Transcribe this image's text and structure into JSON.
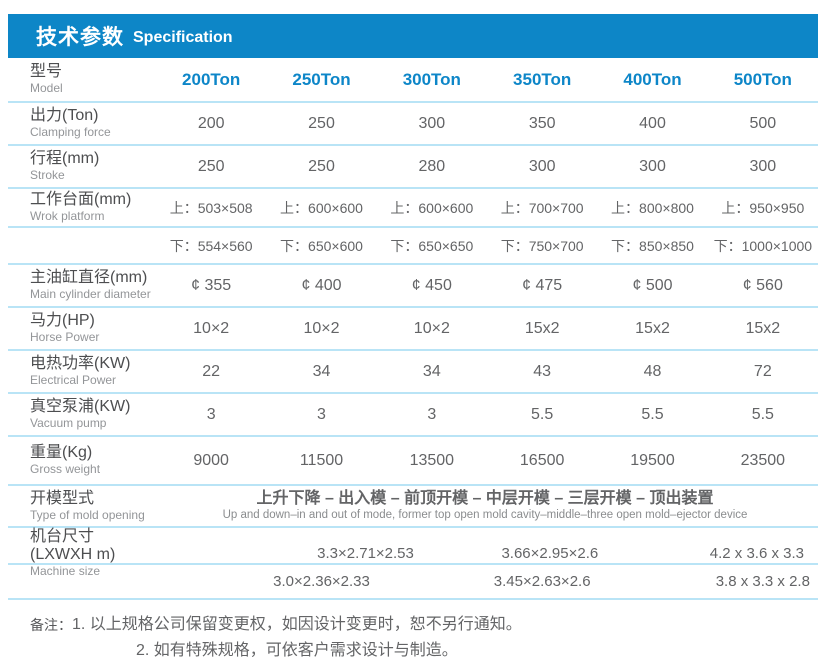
{
  "header": {
    "title_zh": "技术参数",
    "title_en": "Specification"
  },
  "colors": {
    "header_bg": "#0d86c7",
    "accent_text": "#0d86c8",
    "divider": "#b9e4f6",
    "text_primary": "#636466",
    "text_label": "#4d4e50",
    "text_sub": "#939598"
  },
  "model_row": {
    "label_zh": "型号",
    "label_en": "Model"
  },
  "columns": [
    "200Ton",
    "250Ton",
    "300Ton",
    "350Ton",
    "400Ton",
    "500Ton"
  ],
  "rows": [
    {
      "label_zh": "出力(Ton)",
      "label_en": "Clamping force",
      "values": [
        "200",
        "250",
        "300",
        "350",
        "400",
        "500"
      ]
    },
    {
      "label_zh": "行程(mm)",
      "label_en": "Stroke",
      "values": [
        "250",
        "250",
        "280",
        "300",
        "300",
        "300"
      ]
    },
    {
      "label_zh": "主油缸直径(mm)",
      "label_en": "Main cylinder diameter",
      "values": [
        "¢ 355",
        "¢ 400",
        "¢ 450",
        "¢ 475",
        "¢ 500",
        "¢ 560"
      ]
    },
    {
      "label_zh": "马力(HP)",
      "label_en": "Horse Power",
      "values": [
        "10×2",
        "10×2",
        "10×2",
        "15x2",
        "15x2",
        "15x2"
      ]
    },
    {
      "label_zh": "电热功率(KW)",
      "label_en": "Electrical Power",
      "values": [
        "22",
        "34",
        "34",
        "43",
        "48",
        "72"
      ]
    },
    {
      "label_zh": "真空泵浦(KW)",
      "label_en": "Vacuum pump",
      "values": [
        "3",
        "3",
        "3",
        "5.5",
        "5.5",
        "5.5"
      ]
    },
    {
      "label_zh": "重量(Kg)",
      "label_en": "Gross weight",
      "values": [
        "9000",
        "11500",
        "13500",
        "16500",
        "19500",
        "23500"
      ]
    }
  ],
  "work_platform": {
    "label_zh": "工作台面(mm)",
    "label_en": "Wrok platform",
    "upper": [
      "上：503×508",
      "上：600×600",
      "上：600×600",
      "上：700×700",
      "上：800×800",
      "上：950×950"
    ],
    "lower": [
      "下：554×560",
      "下：650×600",
      "下：650×650",
      "下：750×700",
      "下：850×850",
      "下：1000×1000"
    ]
  },
  "mold_opening": {
    "label_zh": "开模型式",
    "label_en": "Type of mold opening",
    "value_zh": "上升下降 – 出入模 – 前顶开模 – 中层开模 – 三层开模 – 顶出装置",
    "value_en": "Up and down–in and out of mode, former top open mold cavity–middle–three open mold–ejector device"
  },
  "machine_size": {
    "label_zh": "机台尺寸(LXWXH m)",
    "label_en": "Machine size",
    "row1": [
      "3.3×2.71×2.53",
      "3.66×2.95×2.6",
      "4.2 x 3.6 x 3.3"
    ],
    "row2": [
      "3.0×2.36×2.33",
      "3.45×2.63×2.6",
      "3.8 x 3.3 x 2.8"
    ]
  },
  "notes": {
    "prefix": "备注：",
    "items": [
      "1. 以上规格公司保留变更权，如因设计变更时，恕不另行通知。",
      "2. 如有特殊规格，可依客户需求设计与制造。"
    ]
  }
}
